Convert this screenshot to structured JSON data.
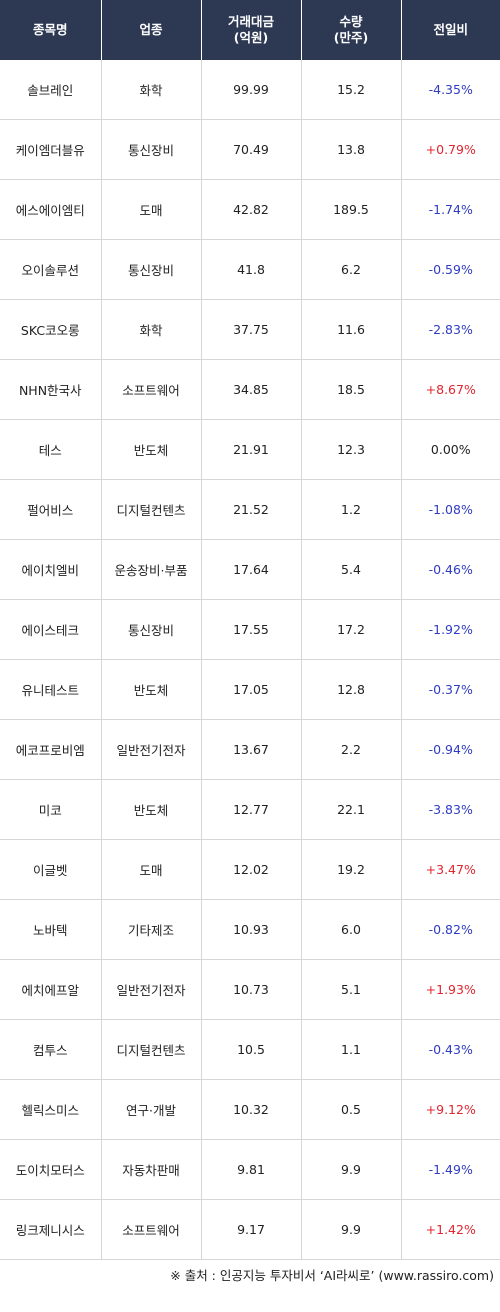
{
  "columns": {
    "name": "종목명",
    "sector": "업종",
    "amount_l1": "거래대금",
    "amount_l2": "(억원)",
    "volume_l1": "수량",
    "volume_l2": "(만주)",
    "change": "전일비"
  },
  "colors": {
    "header_bg": "#2d3853",
    "up": "#e0262f",
    "down": "#2f3cc2"
  },
  "rows": [
    {
      "name": "솔브레인",
      "sector": "화학",
      "amount": "99.99",
      "volume": "15.2",
      "change": "-4.35%",
      "dir": "down"
    },
    {
      "name": "케이엠더블유",
      "sector": "통신장비",
      "amount": "70.49",
      "volume": "13.8",
      "change": "+0.79%",
      "dir": "up"
    },
    {
      "name": "에스에이엠티",
      "sector": "도매",
      "amount": "42.82",
      "volume": "189.5",
      "change": "-1.74%",
      "dir": "down"
    },
    {
      "name": "오이솔루션",
      "sector": "통신장비",
      "amount": "41.8",
      "volume": "6.2",
      "change": "-0.59%",
      "dir": "down"
    },
    {
      "name": "SKC코오롱",
      "sector": "화학",
      "amount": "37.75",
      "volume": "11.6",
      "change": "-2.83%",
      "dir": "down"
    },
    {
      "name": "NHN한국사",
      "sector": "소프트웨어",
      "amount": "34.85",
      "volume": "18.5",
      "change": "+8.67%",
      "dir": "up"
    },
    {
      "name": "테스",
      "sector": "반도체",
      "amount": "21.91",
      "volume": "12.3",
      "change": "0.00%",
      "dir": "flat"
    },
    {
      "name": "펄어비스",
      "sector": "디지털컨텐츠",
      "amount": "21.52",
      "volume": "1.2",
      "change": "-1.08%",
      "dir": "down"
    },
    {
      "name": "에이치엘비",
      "sector": "운송장비·부품",
      "amount": "17.64",
      "volume": "5.4",
      "change": "-0.46%",
      "dir": "down"
    },
    {
      "name": "에이스테크",
      "sector": "통신장비",
      "amount": "17.55",
      "volume": "17.2",
      "change": "-1.92%",
      "dir": "down"
    },
    {
      "name": "유니테스트",
      "sector": "반도체",
      "amount": "17.05",
      "volume": "12.8",
      "change": "-0.37%",
      "dir": "down"
    },
    {
      "name": "에코프로비엠",
      "sector": "일반전기전자",
      "amount": "13.67",
      "volume": "2.2",
      "change": "-0.94%",
      "dir": "down"
    },
    {
      "name": "미코",
      "sector": "반도체",
      "amount": "12.77",
      "volume": "22.1",
      "change": "-3.83%",
      "dir": "down"
    },
    {
      "name": "이글벳",
      "sector": "도매",
      "amount": "12.02",
      "volume": "19.2",
      "change": "+3.47%",
      "dir": "up"
    },
    {
      "name": "노바텍",
      "sector": "기타제조",
      "amount": "10.93",
      "volume": "6.0",
      "change": "-0.82%",
      "dir": "down"
    },
    {
      "name": "에치에프알",
      "sector": "일반전기전자",
      "amount": "10.73",
      "volume": "5.1",
      "change": "+1.93%",
      "dir": "up"
    },
    {
      "name": "컴투스",
      "sector": "디지털컨텐츠",
      "amount": "10.5",
      "volume": "1.1",
      "change": "-0.43%",
      "dir": "down"
    },
    {
      "name": "헬릭스미스",
      "sector": "연구·개발",
      "amount": "10.32",
      "volume": "0.5",
      "change": "+9.12%",
      "dir": "up"
    },
    {
      "name": "도이치모터스",
      "sector": "자동차판매",
      "amount": "9.81",
      "volume": "9.9",
      "change": "-1.49%",
      "dir": "down"
    },
    {
      "name": "링크제니시스",
      "sector": "소프트웨어",
      "amount": "9.17",
      "volume": "9.9",
      "change": "+1.42%",
      "dir": "up"
    }
  ],
  "footer": "※ 출처 : 인공지능 투자비서 ‘AI라씨로’ (www.rassiro.com)"
}
